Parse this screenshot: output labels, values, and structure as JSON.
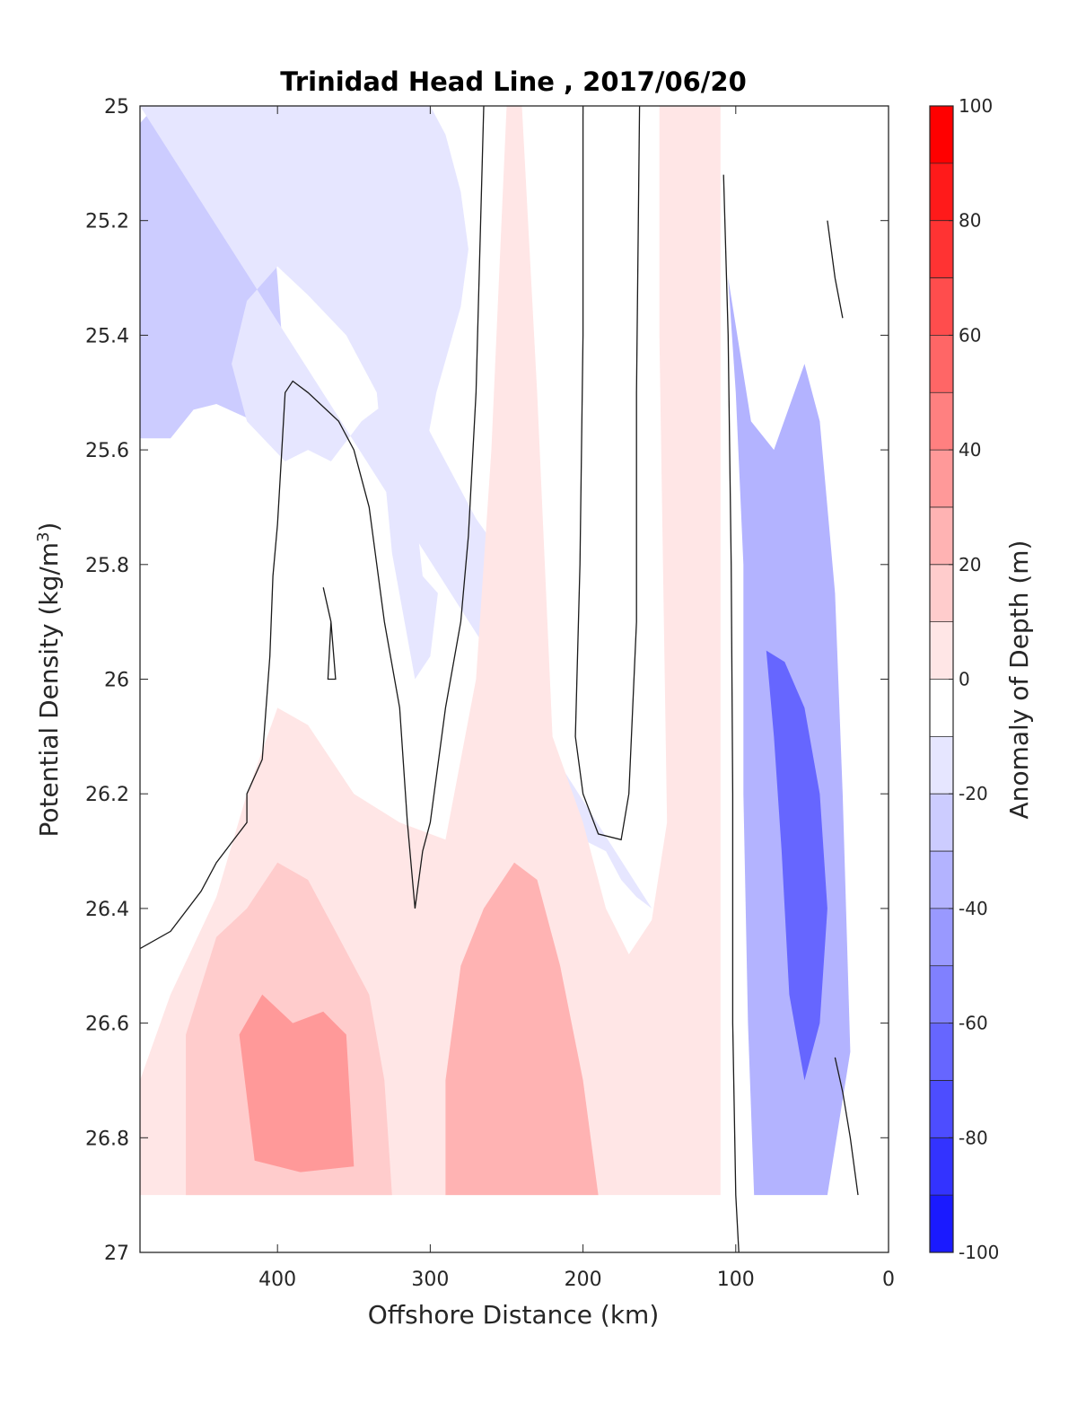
{
  "chart_data": {
    "type": "heatmap",
    "subtype": "filled-contour",
    "title": "Trinidad Head Line , 2017/06/20",
    "xlabel": "Offshore Distance (km)",
    "ylabel_main": "Potential Density (kg/m",
    "ylabel_sup": "3",
    "ylabel_close": ")",
    "colorbar_label": "Anomaly of Depth (m)",
    "x_axis": {
      "reversed": true,
      "xlim": [
        0,
        490
      ],
      "ticks": [
        400,
        300,
        200,
        100,
        0
      ],
      "tick_labels": [
        "400",
        "300",
        "200",
        "100",
        "0"
      ]
    },
    "y_axis": {
      "reversed": true,
      "ylim": [
        25,
        27
      ],
      "ticks": [
        25,
        25.2,
        25.4,
        25.6,
        25.8,
        26,
        26.2,
        26.4,
        26.6,
        26.8,
        27
      ],
      "tick_labels": [
        "25",
        "25.2",
        "25.4",
        "25.6",
        "25.8",
        "26",
        "26.2",
        "26.4",
        "26.6",
        "26.8",
        "27"
      ]
    },
    "colorbar": {
      "range": [
        -100,
        100
      ],
      "step": 10,
      "ticks": [
        100,
        80,
        60,
        40,
        20,
        0,
        -20,
        -40,
        -60,
        -80,
        -100
      ],
      "tick_labels": [
        "100",
        "80",
        "60",
        "40",
        "20",
        "0",
        "-20",
        "-40",
        "-60",
        "-80",
        "-100"
      ],
      "colors_top_to_bottom": [
        "#ff0000",
        "#ff1a1a",
        "#ff3333",
        "#ff4d4d",
        "#ff6666",
        "#ff8080",
        "#ff9999",
        "#ffb3b3",
        "#ffcccc",
        "#ffe6e6",
        "#ffffff",
        "#e6e6ff",
        "#ccccff",
        "#b3b3ff",
        "#9999ff",
        "#8080ff",
        "#6666ff",
        "#4d4dff",
        "#3333ff",
        "#1a1aff"
      ]
    },
    "data_extent": {
      "x_range_km": [
        20,
        490
      ],
      "density_max": 26.9
    },
    "regions": [
      {
        "level": -30,
        "description": "negative anomaly near 470 km offshore",
        "polygon": [
          [
            490,
            25.03
          ],
          [
            480,
            25.0
          ],
          [
            460,
            25.02
          ],
          [
            440,
            25.06
          ],
          [
            425,
            25.05
          ],
          [
            405,
            25.16
          ],
          [
            400,
            25.3
          ],
          [
            395,
            25.48
          ],
          [
            415,
            25.55
          ],
          [
            440,
            25.52
          ],
          [
            455,
            25.53
          ],
          [
            470,
            25.58
          ],
          [
            490,
            25.58
          ]
        ]
      },
      {
        "level": -30,
        "description": "small patch near 370 km",
        "polygon": [
          [
            375,
            25.06
          ],
          [
            368,
            25.05
          ],
          [
            362,
            25.13
          ],
          [
            360,
            25.2
          ],
          [
            365,
            25.27
          ],
          [
            372,
            25.25
          ],
          [
            376,
            25.18
          ]
        ]
      },
      {
        "level": -20,
        "description": "upper offshore negative region",
        "polygon": [
          [
            490,
            25.0
          ],
          [
            360,
            25.0
          ],
          [
            300,
            25.0
          ],
          [
            290,
            25.05
          ],
          [
            280,
            25.15
          ],
          [
            275,
            25.25
          ],
          [
            280,
            25.35
          ],
          [
            296,
            25.5
          ],
          [
            310,
            25.7
          ],
          [
            305,
            25.82
          ],
          [
            295,
            25.85
          ],
          [
            300,
            25.96
          ],
          [
            310,
            26.0
          ],
          [
            325,
            25.78
          ],
          [
            335,
            25.5
          ],
          [
            355,
            25.4
          ],
          [
            380,
            25.33
          ],
          [
            400,
            25.28
          ],
          [
            420,
            25.34
          ],
          [
            430,
            25.45
          ],
          [
            420,
            25.55
          ],
          [
            395,
            25.62
          ],
          [
            380,
            25.6
          ],
          [
            365,
            25.62
          ],
          [
            345,
            25.55
          ],
          [
            330,
            25.52
          ],
          [
            315,
            25.48
          ],
          [
            300,
            25.57
          ],
          [
            290,
            25.62
          ],
          [
            280,
            25.67
          ],
          [
            270,
            25.72
          ],
          [
            262,
            25.75
          ],
          [
            255,
            25.8
          ],
          [
            248,
            25.85
          ],
          [
            240,
            25.9
          ],
          [
            232,
            25.98
          ],
          [
            225,
            26.1
          ],
          [
            210,
            26.18
          ],
          [
            200,
            26.28
          ],
          [
            185,
            26.3
          ],
          [
            175,
            26.35
          ],
          [
            165,
            26.38
          ],
          [
            155,
            26.4
          ]
        ]
      },
      {
        "level": 10,
        "description": "deep positive band",
        "polygon": [
          [
            490,
            26.7
          ],
          [
            470,
            26.55
          ],
          [
            440,
            26.38
          ],
          [
            420,
            26.2
          ],
          [
            400,
            26.05
          ],
          [
            380,
            26.08
          ],
          [
            350,
            26.2
          ],
          [
            320,
            26.25
          ],
          [
            290,
            26.28
          ],
          [
            270,
            26.0
          ],
          [
            260,
            25.6
          ],
          [
            250,
            25.0
          ],
          [
            240,
            25.0
          ],
          [
            230,
            25.5
          ],
          [
            220,
            26.1
          ],
          [
            200,
            26.25
          ],
          [
            185,
            26.4
          ],
          [
            170,
            26.48
          ],
          [
            155,
            26.42
          ],
          [
            145,
            26.25
          ],
          [
            150,
            25.4
          ],
          [
            150,
            25.0
          ],
          [
            110,
            25.0
          ],
          [
            110,
            26.9
          ],
          [
            490,
            26.9
          ]
        ]
      },
      {
        "level": 20,
        "description": "positive core near 400 km",
        "polygon": [
          [
            460,
            26.62
          ],
          [
            440,
            26.45
          ],
          [
            420,
            26.4
          ],
          [
            400,
            26.32
          ],
          [
            380,
            26.35
          ],
          [
            360,
            26.45
          ],
          [
            340,
            26.55
          ],
          [
            330,
            26.7
          ],
          [
            325,
            26.9
          ],
          [
            460,
            26.9
          ]
        ]
      },
      {
        "level": 30,
        "description": "positive core near 240 km",
        "polygon": [
          [
            290,
            26.7
          ],
          [
            280,
            26.5
          ],
          [
            265,
            26.4
          ],
          [
            245,
            26.32
          ],
          [
            230,
            26.35
          ],
          [
            215,
            26.5
          ],
          [
            200,
            26.7
          ],
          [
            190,
            26.9
          ],
          [
            290,
            26.9
          ]
        ]
      },
      {
        "level": 40,
        "description": "strongest positive core near 390 km",
        "polygon": [
          [
            425,
            26.62
          ],
          [
            410,
            26.55
          ],
          [
            390,
            26.6
          ],
          [
            370,
            26.58
          ],
          [
            355,
            26.62
          ],
          [
            350,
            26.85
          ],
          [
            385,
            26.86
          ],
          [
            415,
            26.84
          ]
        ]
      },
      {
        "level": -40,
        "description": "nearshore negative core",
        "polygon": [
          [
            105,
            25.3
          ],
          [
            100,
            25.5
          ],
          [
            95,
            25.8
          ],
          [
            95,
            26.2
          ],
          [
            92,
            26.6
          ],
          [
            88,
            26.9
          ],
          [
            40,
            26.9
          ],
          [
            25,
            26.65
          ],
          [
            30,
            26.2
          ],
          [
            35,
            25.85
          ],
          [
            45,
            25.55
          ],
          [
            55,
            25.45
          ],
          [
            75,
            25.6
          ],
          [
            90,
            25.55
          ]
        ]
      },
      {
        "level": -70,
        "description": "strongest nearshore negative core",
        "polygon": [
          [
            80,
            25.95
          ],
          [
            75,
            26.1
          ],
          [
            70,
            26.3
          ],
          [
            65,
            26.55
          ],
          [
            55,
            26.7
          ],
          [
            45,
            26.6
          ],
          [
            40,
            26.4
          ],
          [
            45,
            26.2
          ],
          [
            55,
            26.05
          ],
          [
            68,
            25.97
          ]
        ]
      }
    ],
    "zero_contours": [
      {
        "points": [
          [
            490,
            26.47
          ],
          [
            470,
            26.44
          ],
          [
            450,
            26.37
          ],
          [
            440,
            26.32
          ],
          [
            420,
            26.25
          ],
          [
            420,
            26.2
          ],
          [
            410,
            26.14
          ],
          [
            405,
            25.96
          ],
          [
            403,
            25.82
          ],
          [
            400,
            25.73
          ],
          [
            395,
            25.5
          ],
          [
            390,
            25.48
          ],
          [
            380,
            25.5
          ],
          [
            360,
            25.55
          ],
          [
            350,
            25.6
          ],
          [
            340,
            25.7
          ],
          [
            330,
            25.9
          ],
          [
            320,
            26.05
          ],
          [
            315,
            26.25
          ],
          [
            310,
            26.4
          ],
          [
            305,
            26.3
          ],
          [
            300,
            26.25
          ],
          [
            290,
            26.05
          ],
          [
            280,
            25.9
          ],
          [
            275,
            25.75
          ],
          [
            270,
            25.5
          ],
          [
            265,
            25.0
          ]
        ]
      },
      {
        "points": [
          [
            200,
            25.0
          ],
          [
            200,
            25.4
          ],
          [
            202,
            25.8
          ],
          [
            205,
            26.1
          ],
          [
            200,
            26.2
          ],
          [
            190,
            26.27
          ],
          [
            175,
            26.28
          ],
          [
            170,
            26.2
          ],
          [
            165,
            25.9
          ],
          [
            165,
            25.5
          ],
          [
            163,
            25.0
          ]
        ]
      },
      {
        "points": [
          [
            108,
            25.12
          ],
          [
            105,
            25.4
          ],
          [
            103,
            25.8
          ],
          [
            102,
            26.2
          ],
          [
            102,
            26.6
          ],
          [
            100,
            26.9
          ],
          [
            98,
            27.0
          ]
        ]
      },
      {
        "points": [
          [
            370,
            25.84
          ],
          [
            365,
            25.9
          ],
          [
            367,
            26.0
          ],
          [
            362,
            26.0
          ],
          [
            365,
            25.9
          ]
        ]
      },
      {
        "points": [
          [
            40,
            25.2
          ],
          [
            35,
            25.3
          ],
          [
            30,
            25.37
          ]
        ]
      },
      {
        "points": [
          [
            35,
            26.66
          ],
          [
            30,
            26.72
          ],
          [
            25,
            26.8
          ],
          [
            20,
            26.9
          ]
        ]
      }
    ]
  }
}
